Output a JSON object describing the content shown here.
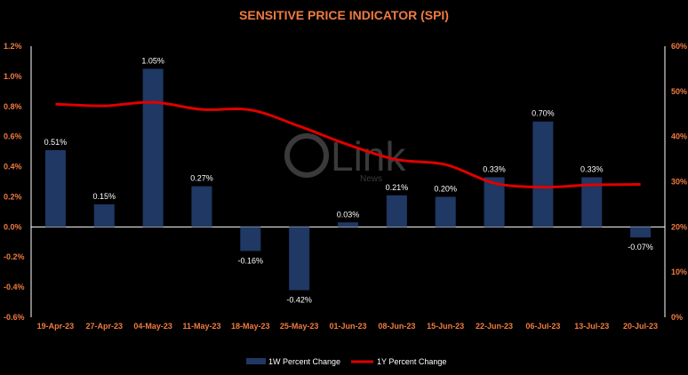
{
  "colors": {
    "background": "#000000",
    "title": "#f07b3f",
    "axis_tick": "#f07b3f",
    "bar": "#1f3864",
    "line": "#e00000",
    "zero_line": "#ffffff",
    "axis_line": "#ffffff",
    "watermark": "#3a3a3a"
  },
  "watermark": {
    "brand": "Link",
    "sub": "News"
  },
  "chart_data": {
    "type": "bar",
    "title": "SENSITIVE PRICE INDICATOR (SPI)",
    "categories": [
      "19-Apr-23",
      "27-Apr-23",
      "04-May-23",
      "11-May-23",
      "18-May-23",
      "25-May-23",
      "01-Jun-23",
      "08-Jun-23",
      "15-Jun-23",
      "22-Jun-23",
      "06-Jul-23",
      "13-Jul-23",
      "20-Jul-23"
    ],
    "series": [
      {
        "name": "1W Percent Change",
        "type": "bar",
        "axis": "left",
        "values": [
          0.51,
          0.15,
          1.05,
          0.27,
          -0.16,
          -0.42,
          0.03,
          0.21,
          0.2,
          0.33,
          0.7,
          0.33,
          -0.07
        ],
        "labels": [
          "0.51%",
          "0.15%",
          "1.05%",
          "0.27%",
          "-0.16%",
          "-0.42%",
          "0.03%",
          "0.21%",
          "0.20%",
          "0.33%",
          "0.70%",
          "0.33%",
          "-0.07%"
        ]
      },
      {
        "name": "1Y Percent Change",
        "type": "line",
        "axis": "right",
        "values": [
          47.2,
          46.8,
          47.6,
          46.0,
          45.9,
          42.3,
          38.2,
          34.9,
          33.8,
          29.7,
          28.8,
          29.3,
          29.4
        ]
      }
    ],
    "y_left": {
      "min": -0.6,
      "max": 1.2,
      "ticks": [
        "-0.6%",
        "-0.4%",
        "-0.2%",
        "0.0%",
        "0.2%",
        "0.4%",
        "0.6%",
        "0.8%",
        "1.0%",
        "1.2%"
      ]
    },
    "y_right": {
      "min": 0,
      "max": 60,
      "ticks": [
        "0%",
        "10%",
        "20%",
        "30%",
        "40%",
        "50%",
        "60%"
      ]
    },
    "legend_position": "bottom",
    "grid": false
  }
}
